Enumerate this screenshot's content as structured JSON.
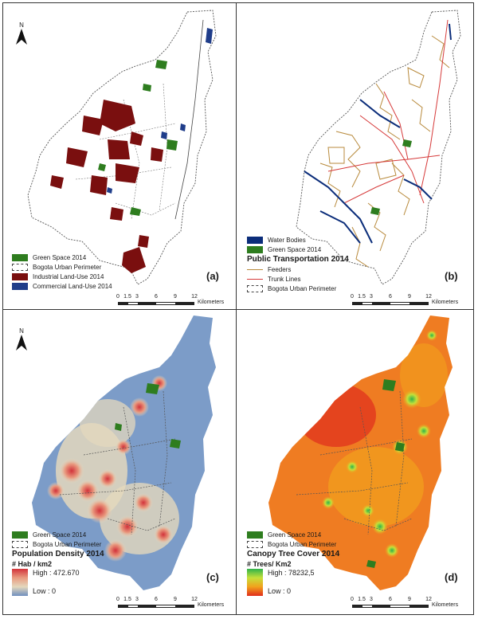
{
  "north_label": "N",
  "colors": {
    "green_space": "#2e7d1f",
    "industrial": "#7a0f0f",
    "commercial": "#1f3d8a",
    "water": "#0b2d7a",
    "feeders": "#b88a3c",
    "trunk": "#d63a3a",
    "pop_low": "#6f8fbf",
    "pop_high": "#d2323a",
    "canopy_low": "#2fb34a",
    "canopy_high": "#e02c1c"
  },
  "scalebar": {
    "ticks": [
      "0",
      "1.5",
      "3",
      "6",
      "9",
      "12"
    ],
    "unit": "Kilometers"
  },
  "panels": [
    {
      "label": "(a)",
      "legend": [
        {
          "label": "Green Space 2014",
          "symbol": "green_space"
        },
        {
          "label": "Bogota Urban Perimeter",
          "symbol": "perimeter"
        },
        {
          "label": "Industrial Land-Use 2014",
          "symbol": "industrial"
        },
        {
          "label": "Commercial Land-Use 2014",
          "symbol": "commercial"
        }
      ]
    },
    {
      "label": "(b)",
      "legend_top": [
        {
          "label": "Water Bodies",
          "symbol": "water"
        },
        {
          "label": "Green Space 2014",
          "symbol": "green_space"
        }
      ],
      "legend_title": "Public Transportation 2014",
      "legend_bottom": [
        {
          "label": "Feeders",
          "symbol": "feeders"
        },
        {
          "label": "Trunk Lines",
          "symbol": "trunk"
        },
        {
          "label": "Bogota Urban Perimeter",
          "symbol": "perimeter"
        }
      ]
    },
    {
      "label": "(c)",
      "legend": [
        {
          "label": "Green Space 2014",
          "symbol": "green_space"
        },
        {
          "label": "Bogota Urban Perimeter",
          "symbol": "perimeter"
        }
      ],
      "legend_title": "Population Density 2014",
      "ramp_title": "# Hab / km2",
      "ramp_high": "High : 472.670",
      "ramp_low": "Low : 0"
    },
    {
      "label": "(d)",
      "legend": [
        {
          "label": "Green Space 2014",
          "symbol": "green_space"
        },
        {
          "label": "Bogota Urban Perimeter",
          "symbol": "perimeter"
        }
      ],
      "legend_title": "Canopy Tree Cover 2014",
      "ramp_title": "# Trees/ Km2",
      "ramp_high": "High : 78232,5",
      "ramp_low": "Low : 0"
    }
  ]
}
